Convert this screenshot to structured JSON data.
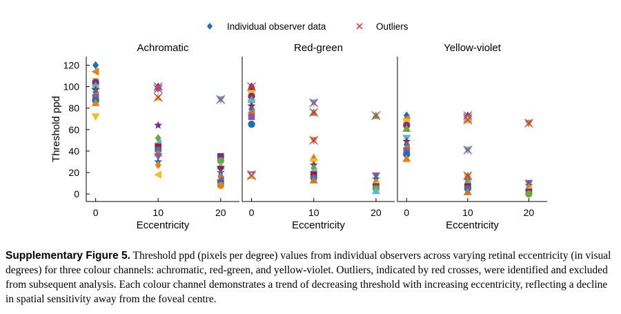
{
  "legend": {
    "data_label": "Individual observer data",
    "outlier_label": "Outliers"
  },
  "colors": {
    "observers": [
      "#1f6fb5",
      "#e3801b",
      "#efc128",
      "#7a2c8c",
      "#70a63a",
      "#58b7e4",
      "#a8162f",
      "#3e6fb3",
      "#c4792d",
      "#8a5a9e"
    ],
    "outlier": "#d62728",
    "axis": "#000000"
  },
  "chart_data": [
    {
      "type": "scatter",
      "title": "Achromatic",
      "xlabel": "Eccentricity",
      "ylabel": "Threshold ppd",
      "xlim": [
        -1.5,
        23
      ],
      "ylim": [
        -7,
        128
      ],
      "xticks": [
        0,
        10,
        20
      ],
      "yticks": [
        0,
        20,
        40,
        60,
        80,
        100,
        120
      ],
      "points": [
        [
          0,
          120,
          0
        ],
        [
          0,
          114,
          1
        ],
        [
          0,
          105,
          2
        ],
        [
          0,
          104,
          3
        ],
        [
          0,
          101,
          4
        ],
        [
          0,
          99,
          5
        ],
        [
          0,
          97,
          6
        ],
        [
          0,
          95,
          7
        ],
        [
          0,
          92,
          8
        ],
        [
          0,
          90,
          9
        ],
        [
          0,
          87,
          0
        ],
        [
          0,
          85,
          1
        ],
        [
          0,
          72,
          2
        ],
        [
          10,
          64,
          3
        ],
        [
          10,
          52,
          4
        ],
        [
          10,
          47,
          5
        ],
        [
          10,
          44,
          6
        ],
        [
          10,
          41,
          7
        ],
        [
          10,
          38,
          8
        ],
        [
          10,
          35,
          9
        ],
        [
          10,
          30,
          0
        ],
        [
          10,
          27,
          1
        ],
        [
          10,
          18,
          2
        ],
        [
          20,
          35,
          3
        ],
        [
          20,
          31,
          4
        ],
        [
          20,
          26,
          5
        ],
        [
          20,
          23,
          6
        ],
        [
          20,
          20,
          7
        ],
        [
          20,
          16,
          8
        ],
        [
          20,
          13,
          9
        ],
        [
          20,
          10,
          0
        ],
        [
          20,
          8,
          1
        ]
      ],
      "outliers": [
        [
          10,
          100
        ],
        [
          10,
          98
        ],
        [
          10,
          90
        ],
        [
          20,
          88
        ]
      ]
    },
    {
      "type": "scatter",
      "title": "Red-green",
      "xlabel": "Eccentricity",
      "ylabel": "",
      "xlim": [
        -1.5,
        23
      ],
      "ylim": [
        -7,
        128
      ],
      "xticks": [
        0,
        10,
        20
      ],
      "yticks": [],
      "points": [
        [
          0,
          100,
          0
        ],
        [
          0,
          97,
          1
        ],
        [
          0,
          94,
          2
        ],
        [
          0,
          91,
          3
        ],
        [
          0,
          88,
          4
        ],
        [
          0,
          85,
          5
        ],
        [
          0,
          82,
          6
        ],
        [
          0,
          79,
          7
        ],
        [
          0,
          76,
          8
        ],
        [
          0,
          72,
          9
        ],
        [
          0,
          65,
          0
        ],
        [
          10,
          34,
          1
        ],
        [
          10,
          30,
          2
        ],
        [
          10,
          27,
          3
        ],
        [
          10,
          24,
          4
        ],
        [
          10,
          21,
          5
        ],
        [
          10,
          18,
          6
        ],
        [
          10,
          15,
          7
        ],
        [
          10,
          13,
          8
        ],
        [
          20,
          17,
          9
        ],
        [
          20,
          14,
          0
        ],
        [
          20,
          11,
          1
        ],
        [
          20,
          9,
          2
        ],
        [
          20,
          7,
          3
        ],
        [
          20,
          5,
          4
        ],
        [
          20,
          3,
          5
        ]
      ],
      "outliers": [
        [
          0,
          100
        ],
        [
          0,
          18
        ],
        [
          0,
          17
        ],
        [
          10,
          85
        ],
        [
          10,
          76
        ],
        [
          10,
          50
        ],
        [
          20,
          73
        ]
      ]
    },
    {
      "type": "scatter",
      "title": "Yellow-violet",
      "xlabel": "Eccentricity",
      "ylabel": "",
      "xlim": [
        -1.5,
        23
      ],
      "ylim": [
        -7,
        128
      ],
      "xticks": [
        0,
        10,
        20
      ],
      "yticks": [],
      "points": [
        [
          0,
          73,
          0
        ],
        [
          0,
          70,
          1
        ],
        [
          0,
          67,
          2
        ],
        [
          0,
          64,
          3
        ],
        [
          0,
          61,
          4
        ],
        [
          0,
          52,
          5
        ],
        [
          0,
          49,
          6
        ],
        [
          0,
          46,
          7
        ],
        [
          0,
          43,
          8
        ],
        [
          0,
          40,
          9
        ],
        [
          0,
          37,
          0
        ],
        [
          0,
          33,
          1
        ],
        [
          10,
          16,
          2
        ],
        [
          10,
          13,
          3
        ],
        [
          10,
          11,
          4
        ],
        [
          10,
          9,
          5
        ],
        [
          10,
          7,
          6
        ],
        [
          10,
          5,
          7
        ],
        [
          10,
          2,
          8
        ],
        [
          20,
          10,
          9
        ],
        [
          20,
          8,
          0
        ],
        [
          20,
          6,
          1
        ],
        [
          20,
          4,
          2
        ],
        [
          20,
          2,
          3
        ],
        [
          20,
          0,
          4
        ]
      ],
      "outliers": [
        [
          10,
          73
        ],
        [
          10,
          71
        ],
        [
          10,
          69
        ],
        [
          10,
          41
        ],
        [
          10,
          17
        ],
        [
          20,
          66
        ]
      ]
    }
  ],
  "caption": {
    "label": "Supplementary Figure 5.",
    "text": " Threshold ppd (pixels per degree) values from individual observers across varying retinal eccentricity (in visual degrees) for three colour channels: achromatic, red-green, and yellow-violet. Outliers, indicated by red crosses, were identified and excluded from subsequent analysis. Each colour channel demonstrates a trend of decreasing threshold with increasing eccentricity, reflecting a decline in spatial sensitivity away from the foveal centre."
  }
}
